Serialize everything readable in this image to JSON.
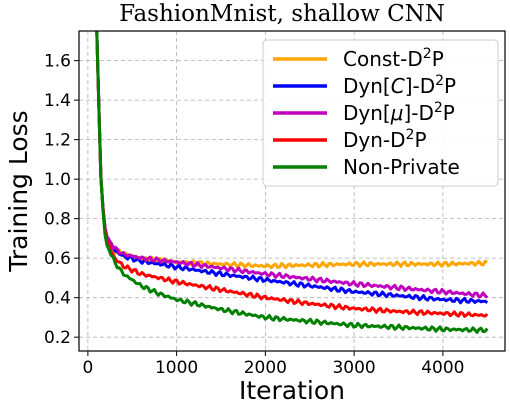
{
  "chart_data": {
    "type": "line",
    "title": "FashionMnist, shallow CNN",
    "xlabel": "Iteration",
    "ylabel": "Training Loss",
    "xlim": [
      -100,
      4700
    ],
    "ylim": [
      0.13,
      1.75
    ],
    "xticks": [
      0,
      1000,
      2000,
      3000,
      4000
    ],
    "yticks": [
      0.2,
      0.4,
      0.6,
      0.8,
      1.0,
      1.2,
      1.4,
      1.6
    ],
    "ytick_labels": [
      "0.2",
      "0.4",
      "0.6",
      "0.8",
      "1.0",
      "1.2",
      "1.4",
      "1.6"
    ],
    "grid": true,
    "legend_position": "top-right",
    "series": [
      {
        "name": "Const-D²P",
        "legend": {
          "pre": "Const-D",
          "sup": "2",
          "post": "P"
        },
        "color": "#ffa500",
        "x": [
          100,
          150,
          200,
          300,
          400,
          600,
          800,
          1000,
          1500,
          2000,
          2500,
          3000,
          3500,
          4000,
          4500
        ],
        "y": [
          1.75,
          0.95,
          0.72,
          0.64,
          0.62,
          0.6,
          0.59,
          0.58,
          0.57,
          0.56,
          0.565,
          0.57,
          0.57,
          0.57,
          0.575
        ]
      },
      {
        "name": "Dyn[C]-D²P",
        "legend": {
          "pre": "Dyn[",
          "ital": "C",
          "mid": "]-D",
          "sup": "2",
          "post": "P"
        },
        "color": "#0000ff",
        "x": [
          100,
          150,
          200,
          300,
          400,
          600,
          800,
          1000,
          1500,
          2000,
          2500,
          3000,
          3500,
          4000,
          4500
        ],
        "y": [
          1.75,
          0.95,
          0.72,
          0.64,
          0.61,
          0.585,
          0.57,
          0.555,
          0.52,
          0.49,
          0.46,
          0.43,
          0.41,
          0.39,
          0.38
        ]
      },
      {
        "name": "Dyn[μ]-D²P",
        "legend": {
          "pre": "Dyn[",
          "ital": "μ",
          "mid": "]-D",
          "sup": "2",
          "post": "P"
        },
        "color": "#c000c0",
        "x": [
          100,
          150,
          200,
          300,
          400,
          600,
          800,
          1000,
          1500,
          2000,
          2500,
          3000,
          3500,
          4000,
          4500
        ],
        "y": [
          1.75,
          0.95,
          0.72,
          0.65,
          0.62,
          0.6,
          0.59,
          0.58,
          0.55,
          0.52,
          0.495,
          0.47,
          0.45,
          0.43,
          0.41
        ]
      },
      {
        "name": "Dyn-D²P",
        "legend": {
          "pre": "Dyn-D",
          "sup": "2",
          "post": "P"
        },
        "color": "#ff0000",
        "x": [
          100,
          150,
          200,
          300,
          400,
          600,
          800,
          1000,
          1500,
          2000,
          2500,
          3000,
          3500,
          4000,
          4500
        ],
        "y": [
          1.75,
          0.95,
          0.7,
          0.6,
          0.56,
          0.52,
          0.5,
          0.48,
          0.44,
          0.4,
          0.37,
          0.345,
          0.33,
          0.32,
          0.31
        ]
      },
      {
        "name": "Non-Private",
        "color": "#008000",
        "x": [
          100,
          150,
          200,
          300,
          400,
          600,
          800,
          1000,
          1500,
          2000,
          2500,
          3000,
          3500,
          4000,
          4500
        ],
        "y": [
          1.75,
          0.95,
          0.68,
          0.58,
          0.52,
          0.46,
          0.42,
          0.39,
          0.34,
          0.3,
          0.28,
          0.26,
          0.25,
          0.24,
          0.235
        ]
      }
    ]
  }
}
